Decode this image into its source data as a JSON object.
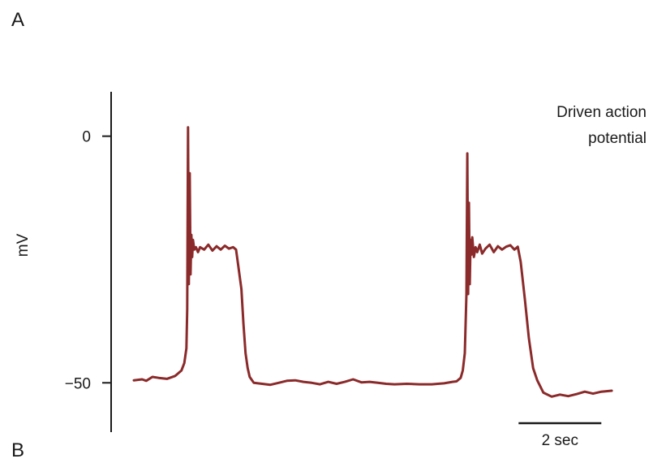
{
  "panel_labels": {
    "top": "A",
    "bottom": "B"
  },
  "chart_data": {
    "type": "line",
    "title": "",
    "annotation": [
      "Driven action",
      "potential"
    ],
    "xlabel": "",
    "ylabel": "mV",
    "y_ticks": [
      {
        "value": 0,
        "label": "0"
      },
      {
        "value": -50,
        "label": "−50"
      }
    ],
    "ylim": [
      -60,
      9
    ],
    "xlim": [
      0,
      12
    ],
    "scale_bar": {
      "length": 2,
      "label": "2 sec"
    },
    "color": "#8b2a2a",
    "grid": false,
    "series": [
      {
        "x": [
          0.0,
          0.2,
          0.3,
          0.45,
          0.6,
          0.8,
          1.0,
          1.15,
          1.22,
          1.27,
          1.29,
          1.31,
          1.33,
          1.35,
          1.37,
          1.39,
          1.41,
          1.43,
          1.46,
          1.5,
          1.55,
          1.6,
          1.7,
          1.8,
          1.9,
          2.0,
          2.1,
          2.2,
          2.3,
          2.4,
          2.47,
          2.52,
          2.6,
          2.65,
          2.7,
          2.75,
          2.8,
          2.9,
          3.1,
          3.3,
          3.5,
          3.7,
          3.9,
          4.1,
          4.3,
          4.5,
          4.7,
          4.9,
          5.1,
          5.3,
          5.5,
          5.7,
          5.9,
          6.1,
          6.3,
          6.6,
          6.9,
          7.2,
          7.5,
          7.7,
          7.8,
          7.9,
          7.95,
          8.0,
          8.02,
          8.04,
          8.06,
          8.08,
          8.1,
          8.12,
          8.14,
          8.16,
          8.18,
          8.22,
          8.26,
          8.3,
          8.36,
          8.42,
          8.5,
          8.6,
          8.7,
          8.8,
          8.9,
          9.0,
          9.1,
          9.2,
          9.28,
          9.35,
          9.45,
          9.55,
          9.65,
          9.75,
          9.9,
          10.1,
          10.3,
          10.5,
          10.7,
          10.9,
          11.1,
          11.3,
          11.55
        ],
        "y": [
          -49.5,
          -49.3,
          -49.6,
          -48.8,
          -49.0,
          -49.2,
          -48.6,
          -47.5,
          -46.0,
          -43.0,
          -35.0,
          1.8,
          -30.0,
          -7.5,
          -28.0,
          -20.0,
          -24.5,
          -21.0,
          -23.0,
          -22.5,
          -23.5,
          -22.5,
          -23.0,
          -22.0,
          -23.2,
          -22.3,
          -23.0,
          -22.2,
          -22.8,
          -22.5,
          -23.0,
          -26.0,
          -31.0,
          -38.0,
          -44.0,
          -47.0,
          -48.8,
          -50.0,
          -50.2,
          -50.4,
          -50.0,
          -49.6,
          -49.5,
          -49.8,
          -50.0,
          -50.3,
          -49.8,
          -50.2,
          -49.8,
          -49.3,
          -49.9,
          -49.8,
          -50.0,
          -50.2,
          -50.3,
          -50.2,
          -50.3,
          -50.3,
          -50.1,
          -49.8,
          -49.7,
          -49.0,
          -47.5,
          -44.0,
          -38.0,
          -32.0,
          -3.5,
          -32.0,
          -13.5,
          -30.0,
          -21.0,
          -24.0,
          -20.5,
          -24.5,
          -22.5,
          -23.5,
          -22.0,
          -23.8,
          -22.8,
          -22.0,
          -23.5,
          -22.3,
          -23.0,
          -22.4,
          -22.1,
          -23.0,
          -22.4,
          -25.5,
          -33.0,
          -41.0,
          -47.0,
          -49.5,
          -52.0,
          -52.8,
          -52.4,
          -52.7,
          -52.3,
          -51.8,
          -52.2,
          -51.8,
          -51.6
        ]
      }
    ]
  }
}
